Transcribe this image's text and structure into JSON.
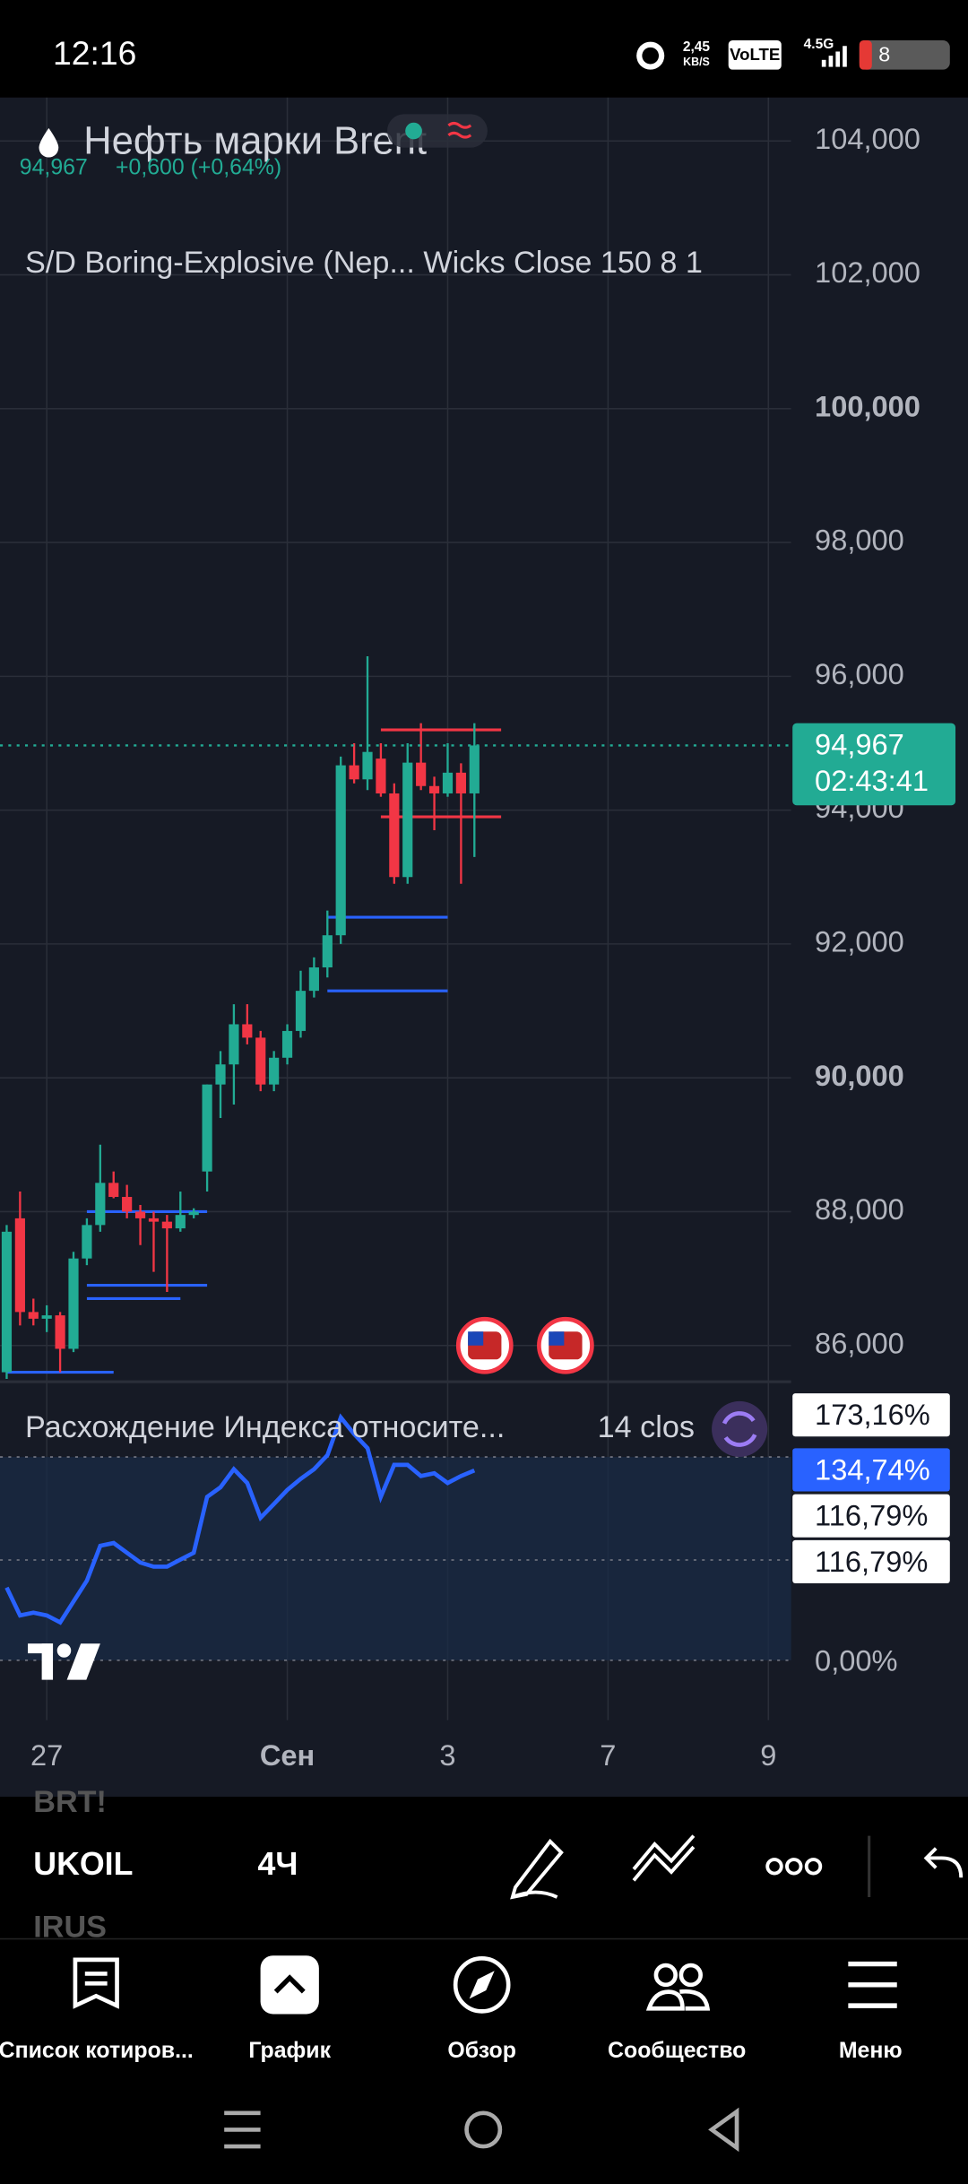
{
  "status_bar": {
    "time": "12:16",
    "net_speed": "2,45",
    "net_unit": "KB/S",
    "volte": "VoLTE",
    "signal": "4.5G",
    "battery": "8"
  },
  "symbol": {
    "name": "Нефть марки Brent",
    "price": "94,967",
    "change": "+0,600 (+0,64%)"
  },
  "chart_data": [
    {
      "type": "candlestick",
      "indicator": "S/D Boring-Explosive (Nep... Wicks Close 150 8 1",
      "x": [
        0,
        1,
        2,
        3,
        4,
        5,
        6,
        7,
        8,
        9,
        10,
        11,
        12,
        13,
        14,
        15,
        16,
        17,
        18,
        19,
        20,
        21,
        22,
        23,
        24,
        25,
        26,
        27,
        28,
        29,
        30,
        31,
        32,
        33,
        34,
        35
      ],
      "open": [
        85600,
        87900,
        86500,
        86400,
        86450,
        85950,
        87300,
        87800,
        88430,
        88220,
        88000,
        87900,
        87850,
        87750,
        87950,
        88600,
        89900,
        90200,
        90800,
        90600,
        89900,
        90300,
        90700,
        91300,
        91650,
        92130,
        94670,
        94460,
        94770,
        94250,
        93000,
        94710,
        94360,
        94250,
        94560,
        94250
      ],
      "high": [
        87800,
        88300,
        86700,
        86600,
        86500,
        87400,
        87900,
        89000,
        88600,
        88400,
        88100,
        88000,
        87950,
        88300,
        88050,
        89900,
        90400,
        91100,
        91100,
        90700,
        90400,
        90800,
        91600,
        91800,
        92500,
        94800,
        95000,
        96300,
        95000,
        94400,
        95000,
        95300,
        94500,
        95000,
        94700,
        95300
      ],
      "low": [
        85500,
        86300,
        86300,
        86200,
        85600,
        85900,
        87200,
        87700,
        88200,
        87900,
        87500,
        87100,
        86800,
        87700,
        87900,
        88300,
        89400,
        89600,
        90500,
        89800,
        89800,
        90200,
        90600,
        91200,
        91500,
        92000,
        94400,
        94300,
        94200,
        92900,
        92900,
        94300,
        93700,
        94200,
        92900,
        93300
      ],
      "close": [
        87700,
        86500,
        86400,
        86450,
        85950,
        87300,
        87800,
        88430,
        88220,
        88000,
        87900,
        87850,
        87750,
        87950,
        88000,
        89900,
        90200,
        90800,
        90600,
        89900,
        90300,
        90700,
        91300,
        91650,
        92130,
        94670,
        94460,
        94870,
        94250,
        93000,
        94710,
        94360,
        94250,
        94560,
        94250,
        94967
      ],
      "up_color": "#22ab94",
      "down_color": "#f23645",
      "levels": [
        {
          "value": 92400,
          "from": 24,
          "to": 33,
          "color": "#2962ff"
        },
        {
          "value": 91300,
          "from": 24,
          "to": 33,
          "color": "#2962ff"
        },
        {
          "value": 95200,
          "from": 28,
          "to": 37,
          "color": "#f23645"
        },
        {
          "value": 93900,
          "from": 28,
          "to": 37,
          "color": "#f23645"
        },
        {
          "value": 88000,
          "from": 6,
          "to": 15,
          "color": "#2962ff"
        },
        {
          "value": 86900,
          "from": 6,
          "to": 15,
          "color": "#2962ff"
        },
        {
          "value": 86700,
          "from": 6,
          "to": 13,
          "color": "#2962ff"
        },
        {
          "value": 85600,
          "from": 0,
          "to": 8,
          "color": "#2962ff"
        }
      ],
      "last_price": 94967,
      "last_price_label": "94,967",
      "countdown": "02:43:41",
      "xlim": [
        -0.5,
        58.7
      ],
      "xticks": [
        {
          "value": 3,
          "label": "27"
        },
        {
          "value": 21,
          "label": "Сен"
        },
        {
          "value": 33,
          "label": "3"
        },
        {
          "value": 45,
          "label": "7"
        },
        {
          "value": 57,
          "label": "9"
        }
      ],
      "ylim": [
        85500,
        104650
      ],
      "yticks": [
        {
          "value": 86000,
          "label": "86,000"
        },
        {
          "value": 88000,
          "label": "88,000"
        },
        {
          "value": 90000,
          "label": "90,000"
        },
        {
          "value": 92000,
          "label": "92,000"
        },
        {
          "value": 94000,
          "label": "94,000"
        },
        {
          "value": 96000,
          "label": "96,000"
        },
        {
          "value": 98000,
          "label": "98,000"
        },
        {
          "value": 100000,
          "label": "100,000"
        },
        {
          "value": 102000,
          "label": "102,000"
        },
        {
          "value": 104000,
          "label": "104,000"
        }
      ],
      "grid": true
    },
    {
      "type": "line",
      "title": "Расхождение Индекса относите...",
      "params": "14 clos",
      "x": [
        0,
        1,
        2,
        3,
        4,
        5,
        6,
        7,
        8,
        9,
        10,
        11,
        12,
        13,
        14,
        15,
        16,
        17,
        18,
        19,
        20,
        21,
        22,
        23,
        24,
        25,
        26,
        27,
        28,
        29,
        30,
        31,
        32,
        33,
        34,
        35
      ],
      "values": [
        52.7,
        33.2,
        35.2,
        33.2,
        28.3,
        43,
        57.6,
        82,
        84,
        77.1,
        70.3,
        67.4,
        67.4,
        72.3,
        77.1,
        116.2,
        123,
        135.7,
        126,
        101.6,
        111.3,
        121.1,
        128.9,
        135.7,
        145.5,
        171.9,
        160.2,
        150.4,
        116.2,
        138.7,
        138.7,
        130.9,
        132.8,
        126,
        130.9,
        134.74
      ],
      "color": "#2962ff",
      "ylim": [
        -6,
        194
      ],
      "yticks": [
        {
          "value": 0,
          "label": "0,00%"
        }
      ],
      "axis_labels": [
        {
          "value": 173.16,
          "label": "173,16%"
        },
        {
          "value": 134.74,
          "label": "134,74%",
          "highlight": true
        },
        {
          "value": 116.79,
          "label": "116,79%"
        },
        {
          "value": 116.79,
          "label": "116,79%"
        }
      ]
    }
  ],
  "toolbar": {
    "prev_symbol": "BRT!",
    "symbol": "UKOIL",
    "interval": "4Ч",
    "next_symbol": "IRUS"
  },
  "nav": [
    "Список котиров...",
    "График",
    "Обзор",
    "Сообщество",
    "Меню"
  ]
}
